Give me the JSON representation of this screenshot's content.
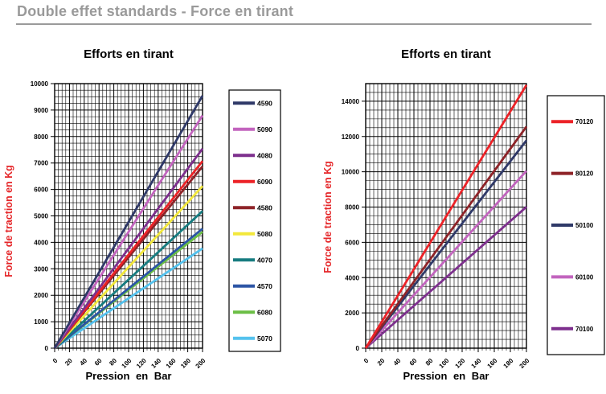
{
  "page": {
    "header": "Double effet standards - Force en tirant",
    "header_color": "#9A9A9A"
  },
  "chart_data": [
    {
      "type": "line",
      "title": "Efforts en tirant",
      "xlabel": "Pression en Bar",
      "ylabel": "Force de traction en Kg",
      "ylabel_color": "#E52528",
      "xlim": [
        0,
        200
      ],
      "ylim": [
        0,
        10000
      ],
      "x_ticks": [
        0,
        20,
        40,
        60,
        80,
        100,
        120,
        140,
        160,
        180,
        200
      ],
      "y_ticks": [
        0,
        1000,
        2000,
        3000,
        4000,
        5000,
        6000,
        7000,
        8000,
        9000,
        10000
      ],
      "x_minor_step": 5,
      "y_minor_step": 250,
      "grid": true,
      "legend_position": "right",
      "series": [
        {
          "name": "4590",
          "color": "#2F3968",
          "x": [
            0,
            200
          ],
          "y": [
            0,
            9543
          ]
        },
        {
          "name": "5090",
          "color": "#C264BE",
          "x": [
            0,
            200
          ],
          "y": [
            0,
            8796
          ]
        },
        {
          "name": "4080",
          "color": "#7D2F8D",
          "x": [
            0,
            200
          ],
          "y": [
            0,
            7540
          ]
        },
        {
          "name": "6090",
          "color": "#EC2227",
          "x": [
            0,
            200
          ],
          "y": [
            0,
            7069
          ]
        },
        {
          "name": "4580",
          "color": "#8E2328",
          "x": [
            0,
            200
          ],
          "y": [
            0,
            6872
          ]
        },
        {
          "name": "5080",
          "color": "#F3E83B",
          "x": [
            0,
            200
          ],
          "y": [
            0,
            6126
          ]
        },
        {
          "name": "4070",
          "color": "#177C80",
          "x": [
            0,
            200
          ],
          "y": [
            0,
            5184
          ]
        },
        {
          "name": "4570",
          "color": "#2C55A5",
          "x": [
            0,
            200
          ],
          "y": [
            0,
            4516
          ]
        },
        {
          "name": "6080",
          "color": "#6BBE45",
          "x": [
            0,
            200
          ],
          "y": [
            0,
            4398
          ]
        },
        {
          "name": "5070",
          "color": "#54C2EE",
          "x": [
            0,
            200
          ],
          "y": [
            0,
            3770
          ]
        }
      ]
    },
    {
      "type": "line",
      "title": "Efforts en tirant",
      "xlabel": "Pression en Bar",
      "ylabel": "Force de traction en Kg",
      "ylabel_color": "#E52528",
      "xlim": [
        0,
        200
      ],
      "ylim": [
        0,
        15000
      ],
      "x_ticks": [
        0,
        20,
        40,
        60,
        80,
        100,
        120,
        140,
        160,
        180,
        200
      ],
      "y_ticks": [
        0,
        2000,
        4000,
        6000,
        8000,
        10000,
        12000,
        14000
      ],
      "x_minor_step": 5,
      "y_minor_step": 500,
      "grid": true,
      "legend_position": "right",
      "series": [
        {
          "name": "70120",
          "color": "#EC2227",
          "x": [
            0,
            200
          ],
          "y": [
            0,
            14923
          ]
        },
        {
          "name": "80120",
          "color": "#8E2328",
          "x": [
            0,
            200
          ],
          "y": [
            0,
            12566
          ]
        },
        {
          "name": "50100",
          "color": "#2F3968",
          "x": [
            0,
            200
          ],
          "y": [
            0,
            11781
          ]
        },
        {
          "name": "60100",
          "color": "#C264BE",
          "x": [
            0,
            200
          ],
          "y": [
            0,
            10053
          ]
        },
        {
          "name": "70100",
          "color": "#7D2F8D",
          "x": [
            0,
            200
          ],
          "y": [
            0,
            8011
          ]
        }
      ]
    }
  ]
}
